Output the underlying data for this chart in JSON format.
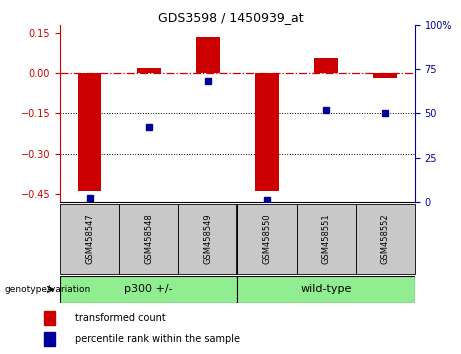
{
  "title": "GDS3598 / 1450939_at",
  "samples": [
    "GSM458547",
    "GSM458548",
    "GSM458549",
    "GSM458550",
    "GSM458551",
    "GSM458552"
  ],
  "red_values": [
    -0.44,
    0.02,
    0.135,
    -0.44,
    0.055,
    -0.02
  ],
  "blue_values": [
    2,
    42,
    68,
    1,
    52,
    50
  ],
  "group_label": "genotype/variation",
  "groups": [
    {
      "label": "p300 +/-",
      "count": 3
    },
    {
      "label": "wild-type",
      "count": 3
    }
  ],
  "ylim_left": [
    -0.48,
    0.18
  ],
  "ylim_right": [
    0,
    100
  ],
  "yticks_left": [
    0.15,
    0.0,
    -0.15,
    -0.3,
    -0.45
  ],
  "yticks_right": [
    100,
    75,
    50,
    25,
    0
  ],
  "dotted_lines": [
    -0.15,
    -0.3
  ],
  "legend_items": [
    {
      "label": "transformed count",
      "color": "#CC0000"
    },
    {
      "label": "percentile rank within the sample",
      "color": "#000099"
    }
  ],
  "bar_width": 0.4,
  "red_color": "#CC0000",
  "blue_color": "#000099",
  "green_color": "#90EE90",
  "sample_bg": "#C8C8C8",
  "title_fontsize": 9,
  "tick_fontsize": 7,
  "sample_fontsize": 6,
  "group_fontsize": 8,
  "legend_fontsize": 7
}
